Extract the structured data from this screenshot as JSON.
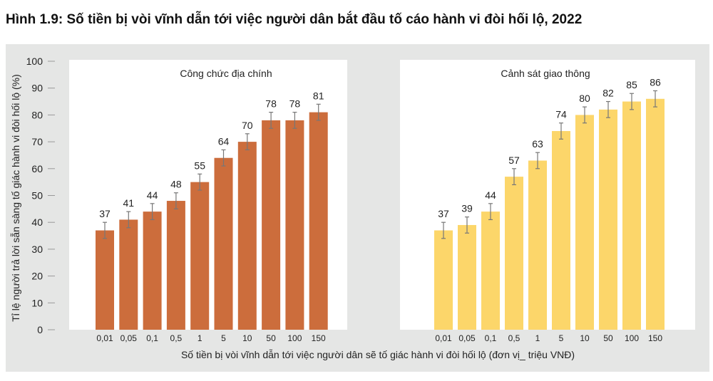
{
  "title": "Hình 1.9: Số tiền bị vòi vĩnh dẫn tới việc người dân bắt đầu tố cáo hành vi đòi hối lộ, 2022",
  "chart_data": [
    {
      "type": "bar",
      "title": "Công chức địa chính",
      "categories": [
        "0,01",
        "0,05",
        "0,1",
        "0,5",
        "1",
        "5",
        "10",
        "50",
        "100",
        "150"
      ],
      "values": [
        37,
        41,
        44,
        48,
        55,
        64,
        70,
        78,
        78,
        81
      ],
      "error_margin": 3,
      "color": "#cc6d3c",
      "ylabel": "Tỉ lệ người trả lời sẵn sàng tố giác hành vi đòi hối lộ (%)",
      "xlabel": "Số tiền bị vòi vĩnh dẫn tới việc người dân sẽ tố giác hành vi đòi hối lộ (đơn vị_ triệu VNĐ)",
      "ylim": [
        0,
        100
      ],
      "yticks": [
        0,
        10,
        20,
        30,
        40,
        50,
        60,
        70,
        80,
        90,
        100
      ],
      "grid": false
    },
    {
      "type": "bar",
      "title": "Cảnh sát giao thông",
      "categories": [
        "0,01",
        "0,05",
        "0,1",
        "0,5",
        "1",
        "5",
        "10",
        "50",
        "100",
        "150"
      ],
      "values": [
        37,
        39,
        44,
        57,
        63,
        74,
        80,
        82,
        85,
        86
      ],
      "error_margin": 3,
      "color": "#fcd66a",
      "ylim": [
        0,
        100
      ],
      "grid": false
    }
  ]
}
